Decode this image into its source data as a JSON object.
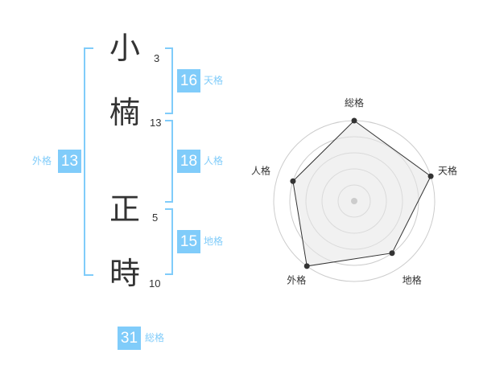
{
  "name": [
    {
      "char": "小",
      "strokes": "3"
    },
    {
      "char": "楠",
      "strokes": "13"
    },
    {
      "char": "正",
      "strokes": "5"
    },
    {
      "char": "時",
      "strokes": "10"
    }
  ],
  "kaku": {
    "tenkaku": {
      "value": "16",
      "label": "天格"
    },
    "jinkaku": {
      "value": "18",
      "label": "人格"
    },
    "chikaku": {
      "value": "15",
      "label": "地格"
    },
    "gaikaku": {
      "value": "13",
      "label": "外格"
    },
    "soukaku": {
      "value": "31",
      "label": "総格"
    }
  },
  "colors": {
    "accent": "#80ccfa",
    "text": "#333333",
    "fill": "#f2f2f2"
  },
  "chart_data": {
    "type": "radar",
    "axes": [
      "総格",
      "天格",
      "地格",
      "外格",
      "人格"
    ],
    "values": [
      5,
      5,
      4,
      5,
      4
    ],
    "range": [
      0,
      5
    ],
    "rings": 5
  }
}
